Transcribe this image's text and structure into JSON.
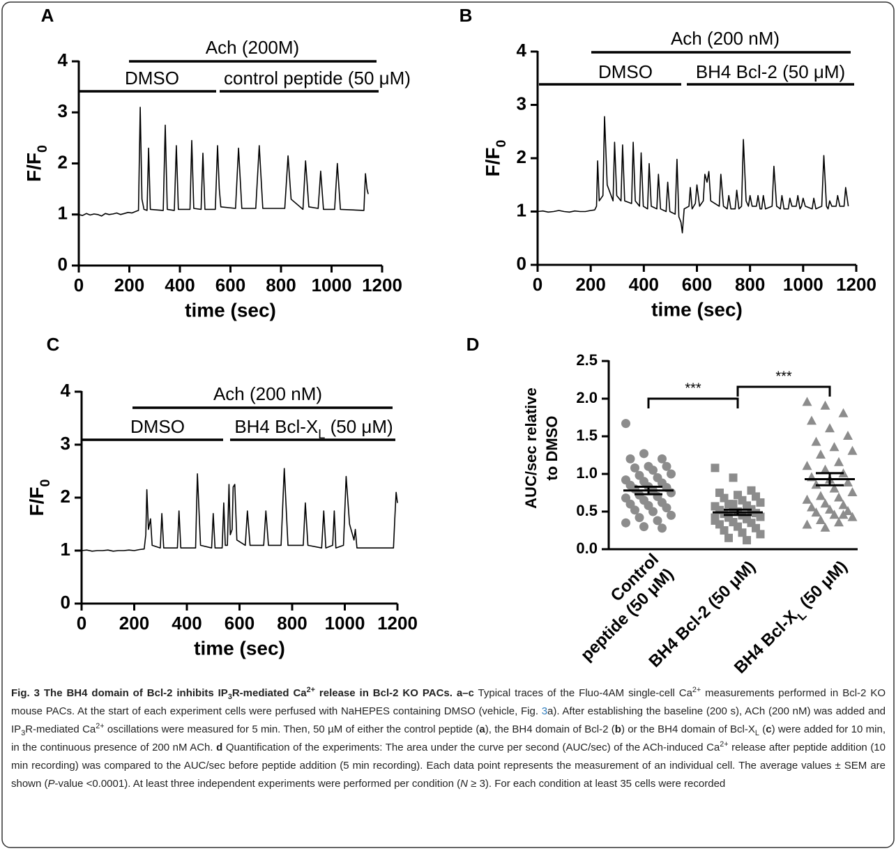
{
  "chart_data": [
    {
      "type": "line",
      "panel": "A",
      "xlabel": "time (sec)",
      "ylabel": [
        [
          {
            "text": "F/F"
          },
          {
            "text": "0",
            "sub": true
          }
        ]
      ],
      "color": "#000000",
      "xlim": [
        0,
        1200
      ],
      "ylim": [
        0,
        4
      ],
      "xticks": [
        0,
        200,
        400,
        600,
        800,
        1000,
        1200
      ],
      "yticks": [
        0,
        1,
        2,
        3,
        4
      ],
      "annotations": [
        {
          "text": "Ach (200M)"
        },
        {
          "text": "DMSO"
        },
        {
          "text": "control peptide (50 μM)"
        }
      ],
      "x": [
        0,
        15,
        30,
        45,
        60,
        75,
        90,
        105,
        120,
        135,
        150,
        165,
        180,
        195,
        210,
        225,
        236,
        243,
        250,
        258,
        270,
        276,
        283,
        334,
        342,
        350,
        378,
        386,
        394,
        440,
        447,
        455,
        484,
        491,
        499,
        540,
        549,
        556,
        562,
        620,
        632,
        645,
        700,
        714,
        728,
        815,
        828,
        840,
        887,
        897,
        910,
        947,
        957,
        968,
        1012,
        1023,
        1035,
        1128,
        1134,
        1140,
        1145
      ],
      "values": [
        1.0,
        0.98,
        1.02,
        0.99,
        1.01,
        1.0,
        0.97,
        1.02,
        1.0,
        1.01,
        1.03,
        1.0,
        1.02,
        1.04,
        1.03,
        1.06,
        1.08,
        3.1,
        1.3,
        1.1,
        1.08,
        2.3,
        1.1,
        1.08,
        2.75,
        1.1,
        1.08,
        2.35,
        1.1,
        1.1,
        2.45,
        1.12,
        1.1,
        2.2,
        1.1,
        1.1,
        2.35,
        1.5,
        1.15,
        1.12,
        2.3,
        1.12,
        1.12,
        2.35,
        1.12,
        1.12,
        2.15,
        1.3,
        1.1,
        2.05,
        1.15,
        1.12,
        1.85,
        1.1,
        1.1,
        2.0,
        1.1,
        1.08,
        1.8,
        1.5,
        1.4
      ]
    },
    {
      "type": "line",
      "panel": "B",
      "xlabel": "time (sec)",
      "ylabel": [
        [
          {
            "text": "F/F"
          },
          {
            "text": "0",
            "sub": true
          }
        ]
      ],
      "color": "#000000",
      "xlim": [
        0,
        1200
      ],
      "ylim": [
        0,
        4
      ],
      "xticks": [
        0,
        200,
        400,
        600,
        800,
        1000,
        1200
      ],
      "yticks": [
        0,
        1,
        2,
        3,
        4
      ],
      "annotations": [
        {
          "text": "Ach (200 nM)"
        },
        {
          "text": "DMSO"
        },
        {
          "text": "BH4 Bcl-2 (50 μM)"
        }
      ],
      "x": [
        0,
        20,
        40,
        60,
        80,
        100,
        120,
        140,
        160,
        180,
        200,
        215,
        222,
        226,
        232,
        246,
        252,
        262,
        284,
        290,
        298,
        314,
        320,
        328,
        354,
        360,
        368,
        384,
        390,
        398,
        414,
        420,
        428,
        449,
        455,
        463,
        484,
        490,
        498,
        518,
        525,
        532,
        540,
        545,
        552,
        570,
        575,
        582,
        594,
        600,
        610,
        624,
        630,
        638,
        645,
        652,
        684,
        690,
        700,
        714,
        720,
        728,
        744,
        750,
        758,
        768,
        775,
        785,
        794,
        800,
        808,
        824,
        830,
        838,
        844,
        850,
        858,
        883,
        890,
        900,
        914,
        920,
        928,
        944,
        950,
        958,
        974,
        980,
        988,
        994,
        1000,
        1008,
        1034,
        1040,
        1048,
        1070,
        1078,
        1088,
        1094,
        1100,
        1108,
        1124,
        1130,
        1138,
        1154,
        1160,
        1170
      ],
      "values": [
        1.0,
        1.01,
        0.99,
        1.0,
        1.02,
        1.0,
        0.99,
        1.01,
        1.0,
        1.0,
        1.02,
        1.03,
        1.1,
        1.95,
        1.2,
        1.3,
        2.78,
        1.5,
        1.2,
        2.3,
        1.3,
        1.2,
        2.25,
        1.2,
        1.15,
        2.3,
        1.2,
        1.1,
        2.1,
        1.1,
        1.05,
        1.9,
        1.1,
        1.05,
        1.7,
        1.05,
        1.0,
        1.55,
        1.0,
        0.95,
        1.98,
        0.9,
        0.8,
        0.6,
        1.05,
        1.1,
        1.45,
        1.05,
        1.15,
        1.5,
        1.1,
        1.2,
        1.7,
        1.55,
        1.75,
        1.2,
        1.1,
        1.7,
        1.1,
        1.05,
        1.3,
        1.05,
        1.05,
        1.4,
        1.05,
        1.1,
        2.35,
        1.2,
        1.1,
        1.3,
        1.1,
        1.1,
        1.3,
        1.05,
        1.05,
        1.3,
        1.05,
        1.1,
        1.85,
        1.1,
        1.05,
        1.3,
        1.05,
        1.05,
        1.25,
        1.1,
        1.1,
        1.3,
        1.05,
        1.1,
        1.25,
        1.1,
        1.05,
        1.25,
        1.05,
        1.1,
        2.05,
        1.1,
        1.05,
        1.2,
        1.1,
        1.1,
        1.3,
        1.1,
        1.1,
        1.45,
        1.1
      ]
    },
    {
      "type": "line",
      "panel": "C",
      "xlabel": "time (sec)",
      "ylabel": [
        [
          {
            "text": "F/F"
          },
          {
            "text": "0",
            "sub": true
          }
        ]
      ],
      "color": "#000000",
      "xlim": [
        0,
        1200
      ],
      "ylim": [
        0,
        4
      ],
      "xticks": [
        0,
        200,
        400,
        600,
        800,
        1000,
        1200
      ],
      "yticks": [
        0,
        1,
        2,
        3,
        4
      ],
      "annotations": [
        {
          "text": "Ach (200 nM)"
        },
        {
          "text": "DMSO"
        },
        {
          "text": [
            {
              "text": "BH4 Bcl-X"
            },
            {
              "text": "L",
              "sub": true
            },
            {
              "text": " (50 μM)"
            }
          ]
        }
      ],
      "x": [
        0,
        20,
        40,
        60,
        80,
        100,
        120,
        140,
        160,
        180,
        200,
        220,
        238,
        244,
        248,
        254,
        258,
        262,
        268,
        299,
        305,
        312,
        364,
        370,
        377,
        433,
        440,
        452,
        494,
        500,
        507,
        534,
        540,
        546,
        554,
        560,
        565,
        572,
        576,
        582,
        590,
        622,
        630,
        640,
        692,
        700,
        710,
        758,
        770,
        784,
        842,
        850,
        860,
        912,
        920,
        928,
        954,
        960,
        966,
        995,
        1005,
        1018,
        1035,
        1040,
        1046,
        1185,
        1190,
        1195,
        1200
      ],
      "values": [
        1.0,
        1.01,
        0.99,
        1.0,
        1.0,
        1.01,
        0.99,
        1.0,
        1.0,
        1.01,
        1.0,
        1.02,
        1.03,
        1.3,
        2.15,
        1.4,
        1.5,
        1.6,
        1.1,
        1.05,
        1.7,
        1.05,
        1.05,
        1.75,
        1.05,
        1.05,
        2.45,
        1.1,
        1.05,
        1.7,
        1.05,
        1.05,
        1.9,
        1.1,
        1.1,
        2.25,
        1.3,
        1.4,
        2.2,
        2.25,
        1.2,
        1.1,
        1.75,
        1.1,
        1.1,
        1.75,
        1.1,
        1.1,
        2.55,
        1.1,
        1.1,
        1.9,
        1.1,
        1.05,
        1.75,
        1.05,
        1.1,
        1.75,
        1.05,
        1.1,
        2.4,
        1.5,
        1.2,
        1.4,
        1.05,
        1.05,
        1.6,
        2.1,
        1.9
      ]
    },
    {
      "type": "strip",
      "panel": "D",
      "ylabel": [
        "AUC/sec relative",
        "to DMSO"
      ],
      "ylim": [
        0,
        2.5
      ],
      "yticks": [
        {
          "value": 0,
          "label": "0.0"
        },
        0.5,
        {
          "value": 1,
          "label": "1.0"
        },
        1.5,
        {
          "value": 2,
          "label": "2.0"
        },
        2.5
      ],
      "categories": [
        [
          "Control",
          "peptide (50 μM)"
        ],
        [
          "BH4 Bcl-2 (50 μM)"
        ],
        [
          [
            {
              "text": "BH4 Bcl-X"
            },
            {
              "text": "L",
              "sub": true
            },
            {
              "text": " (50 μM)"
            }
          ]
        ]
      ],
      "annotations": [
        {
          "text": "***"
        },
        {
          "text": "***"
        }
      ],
      "groups": [
        {
          "marker": "circle",
          "color": "#8c8c8c",
          "mean": 0.78,
          "sem": 0.05,
          "values": [
            1.67,
            1.27,
            1.2,
            1.2,
            1.1,
            1.1,
            1.08,
            1.05,
            1.0,
            0.98,
            0.95,
            0.92,
            0.9,
            0.88,
            0.85,
            0.83,
            0.82,
            0.8,
            0.78,
            0.75,
            0.72,
            0.7,
            0.68,
            0.65,
            0.62,
            0.6,
            0.58,
            0.55,
            0.52,
            0.5,
            0.45,
            0.42,
            0.38,
            0.35,
            0.3,
            0.28
          ]
        },
        {
          "marker": "square",
          "color": "#8c8c8c",
          "mean": 0.49,
          "sem": 0.035,
          "values": [
            1.08,
            0.95,
            0.78,
            0.75,
            0.72,
            0.7,
            0.68,
            0.65,
            0.62,
            0.6,
            0.58,
            0.57,
            0.55,
            0.53,
            0.52,
            0.5,
            0.48,
            0.47,
            0.45,
            0.43,
            0.42,
            0.4,
            0.38,
            0.36,
            0.35,
            0.33,
            0.3,
            0.28,
            0.25,
            0.22,
            0.2,
            0.15,
            0.12,
            0.42,
            0.6,
            0.52
          ]
        },
        {
          "marker": "triangle",
          "color": "#8c8c8c",
          "mean": 0.93,
          "sem": 0.08,
          "values": [
            1.95,
            1.9,
            1.8,
            1.7,
            1.6,
            1.5,
            1.42,
            1.35,
            1.3,
            1.25,
            1.15,
            1.1,
            1.05,
            1.0,
            0.95,
            0.92,
            0.88,
            0.85,
            0.8,
            0.75,
            0.7,
            0.68,
            0.65,
            0.6,
            0.58,
            0.55,
            0.52,
            0.5,
            0.48,
            0.45,
            0.42,
            0.38,
            0.35,
            0.32,
            0.28,
            0.45
          ]
        }
      ]
    }
  ],
  "caption": [
    {
      "text": "Fig. 3 The BH4 domain of Bcl-2 inhibits IP",
      "b": true
    },
    {
      "text": "3",
      "b": true,
      "sub": true
    },
    {
      "text": "R-mediated Ca",
      "b": true
    },
    {
      "text": "2+",
      "b": true,
      "sup": true
    },
    {
      "text": " release in Bcl-2 KO PACs. a–c",
      "b": true
    },
    {
      "text": " Typical traces of the Fluo-4AM single-cell Ca"
    },
    {
      "text": "2+",
      "sup": true
    },
    {
      "text": " measurements performed in Bcl-2 KO mouse PACs. At the start of each experiment cells were perfused with NaHEPES containing DMSO (vehicle, Fig. "
    },
    {
      "text": "3",
      "link": true
    },
    {
      "text": "a). After establishing the baseline (200 s), ACh (200 nM) was added and IP"
    },
    {
      "text": "3",
      "sub": true
    },
    {
      "text": "R-mediated Ca"
    },
    {
      "text": "2+",
      "sup": true
    },
    {
      "text": " oscillations were measured for 5 min. Then, 50 µM of either the control peptide ("
    },
    {
      "text": "a",
      "b": true
    },
    {
      "text": "), the BH4 domain of Bcl-2 ("
    },
    {
      "text": "b",
      "b": true
    },
    {
      "text": ") or the BH4 domain of Bcl-X"
    },
    {
      "text": "L",
      "sub": true
    },
    {
      "text": " ("
    },
    {
      "text": "c",
      "b": true
    },
    {
      "text": ") were added for 10 min, in the continuous presence of 200 nM ACh. "
    },
    {
      "text": "d",
      "b": true
    },
    {
      "text": " Quantification of the experiments: The area under the curve per second (AUC/sec) of the ACh-induced Ca"
    },
    {
      "text": "2+",
      "sup": true
    },
    {
      "text": " release after peptide addition (10 min recording) was compared to the AUC/sec before peptide addition (5 min recording). Each data point represents the measurement of an individual cell. The average values ± SEM are shown ("
    },
    {
      "text": "P",
      "i": true
    },
    {
      "text": "-value <0.0001). At least three independent experiments were performed per condition ("
    },
    {
      "text": "N",
      "i": true
    },
    {
      "text": " ≥ 3). For each condition at least 35 cells were recorded"
    }
  ]
}
